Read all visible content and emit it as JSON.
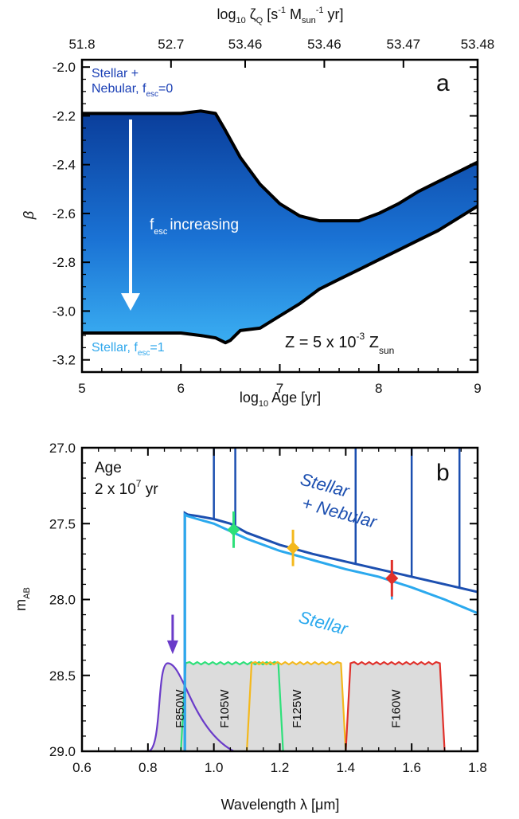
{
  "chart_data": [
    {
      "type": "area",
      "panel_label": "a",
      "xlabel": "log10 Age [yr]",
      "xlabel_parts": {
        "pre": "log",
        "sub": "10",
        "post": " Age [yr]"
      },
      "ylabel": "β",
      "xlim": [
        5,
        9
      ],
      "ylim": [
        -3.25,
        -1.97
      ],
      "xticks": [
        5,
        6,
        7,
        8,
        9
      ],
      "yticks": [
        -2.0,
        -2.2,
        -2.4,
        -2.6,
        -2.8,
        -3.0,
        -3.2
      ],
      "ytick_labels": [
        "-2.0",
        "-2.2",
        "-2.4",
        "-2.6",
        "-2.8",
        "-3.0",
        "-3.2"
      ],
      "top_axis": {
        "label": "log10 ζQ [s-1 Msun-1 yr]",
        "tick_labels": [
          "51.8",
          "52.7",
          "53.46",
          "53.46",
          "53.47",
          "53.48"
        ],
        "tick_positions_x": [
          5,
          5.9,
          6.65,
          7.45,
          8.25,
          9
        ]
      },
      "series": [
        {
          "name": "Stellar + Nebular, fesc=0",
          "x": [
            5.0,
            5.5,
            6.0,
            6.2,
            6.35,
            6.45,
            6.6,
            6.8,
            7.0,
            7.2,
            7.4,
            7.6,
            7.8,
            8.0,
            8.2,
            8.4,
            8.6,
            8.8,
            9.0
          ],
          "y": [
            -2.19,
            -2.19,
            -2.19,
            -2.18,
            -2.19,
            -2.26,
            -2.37,
            -2.48,
            -2.56,
            -2.61,
            -2.63,
            -2.63,
            -2.63,
            -2.6,
            -2.56,
            -2.51,
            -2.47,
            -2.43,
            -2.39
          ]
        },
        {
          "name": "Stellar, fesc=1",
          "x": [
            5.0,
            5.5,
            6.0,
            6.2,
            6.35,
            6.45,
            6.5,
            6.6,
            6.8,
            7.0,
            7.2,
            7.4,
            7.6,
            7.8,
            8.0,
            8.2,
            8.4,
            8.6,
            8.8,
            9.0
          ],
          "y": [
            -3.09,
            -3.09,
            -3.09,
            -3.1,
            -3.11,
            -3.13,
            -3.12,
            -3.08,
            -3.07,
            -3.02,
            -2.97,
            -2.91,
            -2.87,
            -2.83,
            -2.79,
            -2.75,
            -2.71,
            -2.67,
            -2.62,
            -2.57
          ]
        }
      ],
      "annotations": {
        "top_label_line1": "Stellar +",
        "top_label_line2_pre": "Nebular, f",
        "top_label_line2_sub": "esc",
        "top_label_line2_post": "=0",
        "bottom_label_pre": "Stellar, f",
        "bottom_label_sub": "esc",
        "bottom_label_post": "=1",
        "arrow_text_pre": "f",
        "arrow_text_sub": "esc",
        "arrow_text_post": "increasing",
        "z_label_pre": "Z = 5 x 10",
        "z_label_sup": "-3",
        "z_label_post": " Z",
        "z_label_sub": "sun"
      },
      "colors": {
        "fill_top": "#0a3d9a",
        "fill_mid": "#1a72d4",
        "fill_bottom": "#3aaef2",
        "top_label": "#1a3fb5",
        "bottom_label": "#2fa7ec",
        "arrow": "#ffffff"
      }
    },
    {
      "type": "line",
      "panel_label": "b",
      "xlabel": "Wavelength λ [μm]",
      "ylabel": "mAB",
      "ylabel_parts": {
        "pre": "m",
        "sub": "AB"
      },
      "xlim": [
        0.6,
        1.8
      ],
      "ylim": [
        29.0,
        27.0
      ],
      "xticks": [
        0.6,
        0.8,
        1.0,
        1.2,
        1.4,
        1.6,
        1.8
      ],
      "xtick_labels": [
        "0.6",
        "0.8",
        "1.0",
        "1.2",
        "1.4",
        "1.6",
        "1.8"
      ],
      "yticks": [
        27.0,
        27.5,
        28.0,
        28.5,
        29.0
      ],
      "ytick_labels": [
        "27.0",
        "27.5",
        "28.0",
        "28.5",
        "29.0"
      ],
      "series": [
        {
          "name": "Stellar + Nebular",
          "color": "#1c4fb0",
          "x": [
            0.912,
            0.92,
            0.95,
            1.0,
            1.05,
            1.1,
            1.2,
            1.3,
            1.4,
            1.5,
            1.6,
            1.7,
            1.8
          ],
          "y": [
            27.43,
            27.44,
            27.45,
            27.47,
            27.5,
            27.56,
            27.64,
            27.7,
            27.75,
            27.8,
            27.85,
            27.9,
            27.95
          ]
        },
        {
          "name": "Stellar",
          "color": "#2ba9ee",
          "x": [
            0.912,
            0.92,
            0.95,
            1.0,
            1.05,
            1.1,
            1.2,
            1.3,
            1.4,
            1.5,
            1.6,
            1.7,
            1.8
          ],
          "y": [
            27.44,
            27.45,
            27.47,
            27.5,
            27.55,
            27.6,
            27.68,
            27.74,
            27.8,
            27.85,
            27.92,
            28.0,
            28.09
          ]
        }
      ],
      "emission_lines_x": [
        1.0,
        1.065,
        1.43,
        1.6,
        1.745
      ],
      "photometry": [
        {
          "filter": "F105W",
          "x": 1.06,
          "y": 27.54,
          "err": 0.12,
          "color": "#2ee07a"
        },
        {
          "filter": "F125W",
          "x": 1.24,
          "y": 27.66,
          "err": 0.12,
          "color": "#f4b81c"
        },
        {
          "filter": "F160W",
          "x": 1.54,
          "y": 27.86,
          "err": 0.12,
          "color": "#e0302a"
        }
      ],
      "upper_limit": {
        "filter": "F850W",
        "x": 0.875,
        "y": 28.1,
        "color": "#6a3bc9"
      },
      "filters": [
        {
          "name": "F850W",
          "color": "#6a3bc9",
          "x_start": 0.8,
          "x_end": 1.06
        },
        {
          "name": "F105W",
          "color": "#2ee07a",
          "x_start": 0.9,
          "x_end": 1.21
        },
        {
          "name": "F125W",
          "color": "#f4b81c",
          "x_start": 1.1,
          "x_end": 1.4
        },
        {
          "name": "F160W",
          "color": "#e0302a",
          "x_start": 1.4,
          "x_end": 1.7
        }
      ],
      "filter_names": [
        "F850W",
        "F105W",
        "F125W",
        "F160W"
      ],
      "annotations": {
        "age_line1": "Age",
        "age_line2_pre": "2 x 10",
        "age_line2_sup": "7",
        "age_line2_post": " yr",
        "label_nebular_1": "Stellar",
        "label_nebular_2": "+ Nebular",
        "label_stellar": "Stellar"
      }
    }
  ]
}
